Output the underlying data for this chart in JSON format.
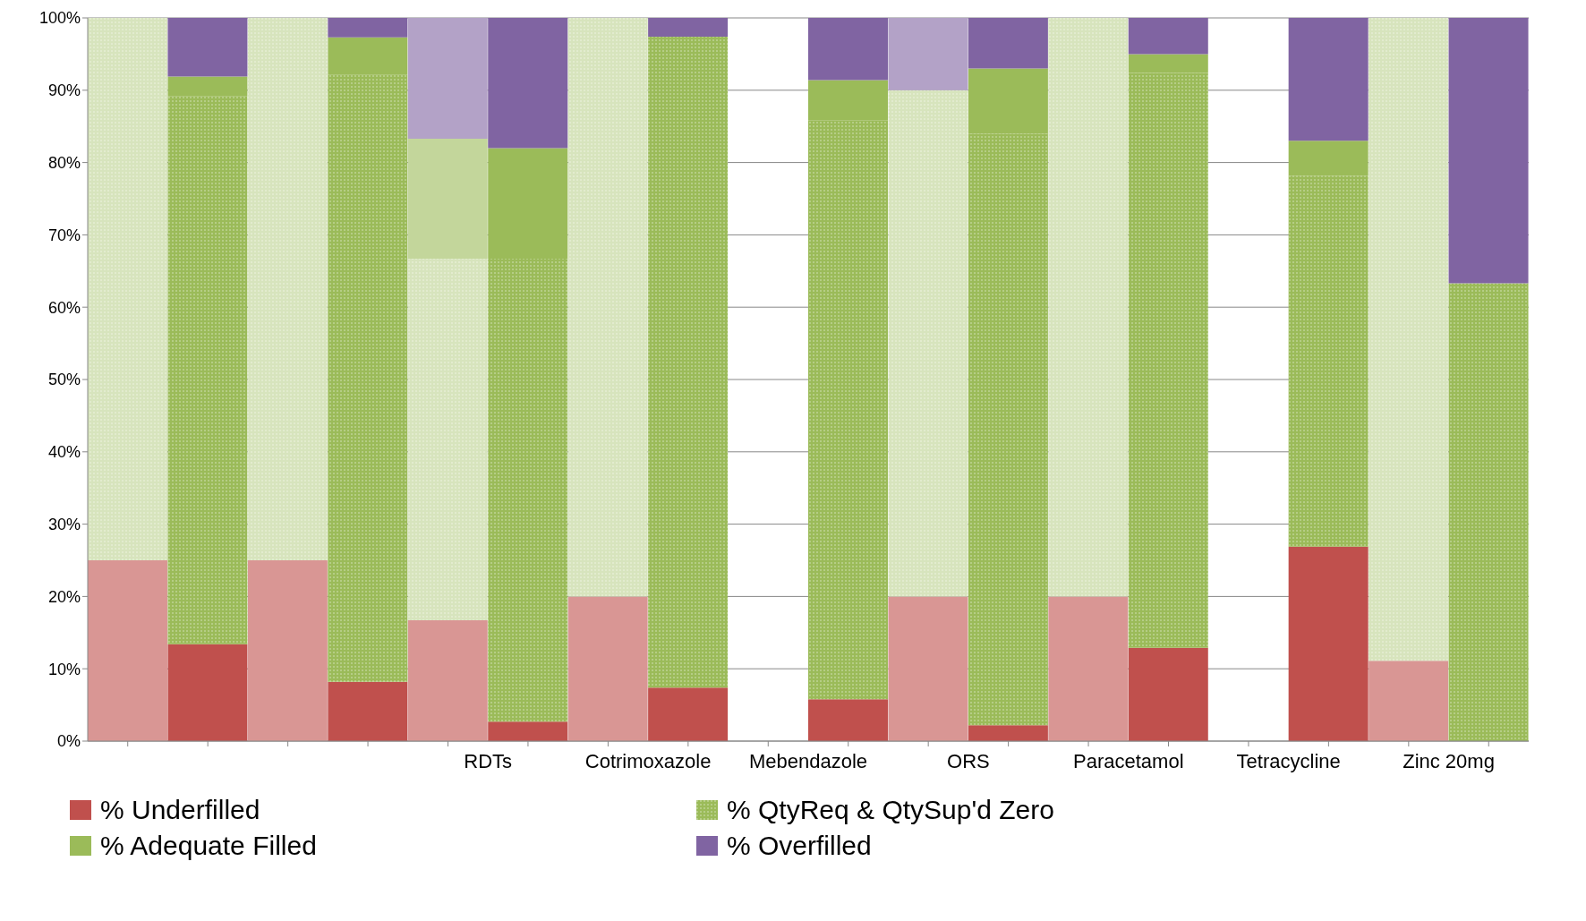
{
  "chart_data": {
    "type": "bar",
    "stacked": true,
    "categories": [
      null,
      null,
      null,
      null,
      "RDTs",
      null,
      "Cotrimoxazole",
      null,
      "Mebendazole",
      null,
      "ORS",
      null,
      "Paracetamol",
      null,
      "Tetracycline",
      null,
      "Zinc 20mg",
      null
    ],
    "series": [
      {
        "name": "% Underfilled",
        "color": "#c0504d",
        "colors": [
          "#d99694",
          "#c0504d",
          "#d99694",
          "#c0504d",
          "#d99694",
          "#c0504d",
          "#d99694",
          "#c0504d",
          "#d99694",
          "#c0504d",
          "#d99694",
          "#c0504d",
          "#d99694",
          "#c0504d",
          "#d99694",
          "#c0504d",
          "#d99694",
          "#c0504d"
        ],
        "values": [
          25,
          13.4,
          25,
          8.2,
          16.7,
          2.7,
          20,
          7.4,
          null,
          5.8,
          20,
          2.2,
          20,
          12.9,
          null,
          26.9,
          11.1,
          0
        ]
      },
      {
        "name": "% QtyReq & QtySup'd Zero",
        "color": "#9bbb59",
        "colors": [
          "#d7e4bd",
          "#9bbb59",
          "#d7e4bd",
          "#9bbb59",
          "#d7e4bd",
          "#9bbb59",
          "#d7e4bd",
          "#9bbb59",
          "#d7e4bd",
          "#9bbb59",
          "#d7e4bd",
          "#9bbb59",
          "#d7e4bd",
          "#9bbb59",
          "#d7e4bd",
          "#9bbb59",
          "#d7e4bd",
          "#9bbb59"
        ],
        "values": [
          75,
          75.8,
          75,
          83.9,
          50,
          64,
          80,
          90,
          null,
          80,
          70,
          81.8,
          80,
          79.5,
          null,
          51.3,
          88.9,
          63.3
        ]
      },
      {
        "name": "% Adequate Filled",
        "color": "#9bbb59",
        "colors": [
          "#c3d69b",
          "#9bbb59",
          "#c3d69b",
          "#9bbb59",
          "#c3d69b",
          "#9bbb59",
          "#c3d69b",
          "#9bbb59",
          "#c3d69b",
          "#9bbb59",
          "#c3d69b",
          "#9bbb59",
          "#c3d69b",
          "#9bbb59",
          "#c3d69b",
          "#9bbb59",
          "#c3d69b",
          "#9bbb59"
        ],
        "values": [
          0,
          2.7,
          0,
          5.2,
          16.6,
          15.3,
          0,
          0,
          null,
          5.6,
          0,
          9,
          0,
          2.6,
          null,
          4.8,
          0,
          0
        ]
      },
      {
        "name": "% Overfilled",
        "color": "#8064a2",
        "colors": [
          "#b3a2c7",
          "#8064a2",
          "#b3a2c7",
          "#8064a2",
          "#b3a2c7",
          "#8064a2",
          "#b3a2c7",
          "#8064a2",
          "#b3a2c7",
          "#8064a2",
          "#b3a2c7",
          "#8064a2",
          "#b3a2c7",
          "#8064a2",
          "#b3a2c7",
          "#8064a2",
          "#b3a2c7",
          "#8064a2"
        ],
        "values": [
          0,
          8.1,
          0,
          2.7,
          16.7,
          18,
          0,
          2.6,
          null,
          8.6,
          10,
          7,
          0,
          5,
          null,
          17,
          0,
          36.7
        ]
      }
    ],
    "ylim": [
      0,
      100
    ],
    "yticks": [
      {
        "value": 0,
        "label": "0%"
      },
      {
        "value": 10,
        "label": "10%"
      },
      {
        "value": 20,
        "label": "20%"
      },
      {
        "value": 30,
        "label": "30%"
      },
      {
        "value": 40,
        "label": "40%"
      },
      {
        "value": 50,
        "label": "50%"
      },
      {
        "value": 60,
        "label": "60%"
      },
      {
        "value": 70,
        "label": "70%"
      },
      {
        "value": 80,
        "label": "80%"
      },
      {
        "value": 90,
        "label": "90%"
      },
      {
        "value": 100,
        "label": "100%"
      }
    ],
    "grid": "y",
    "legend": "bottom"
  }
}
